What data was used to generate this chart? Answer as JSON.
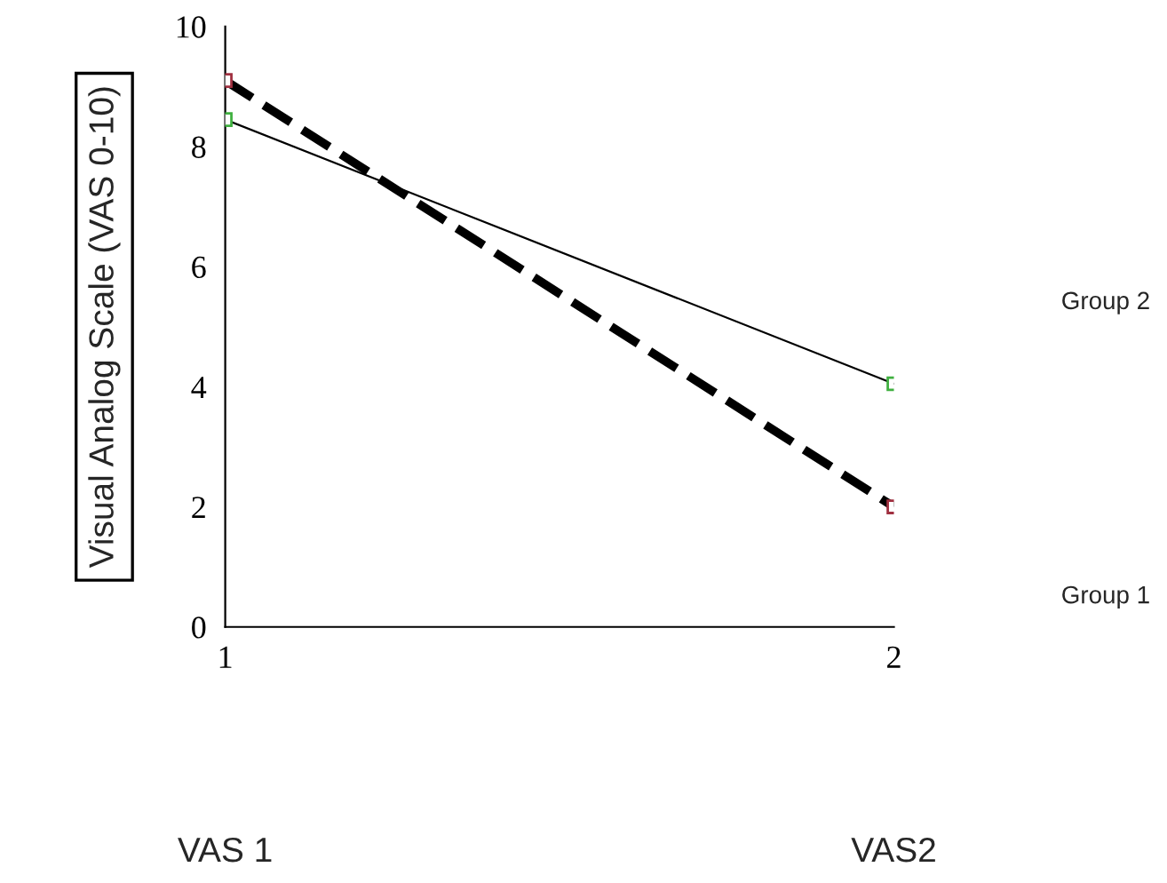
{
  "chart_data": {
    "type": "line",
    "ylabel": "Visual Analog Scale (VAS 0-10)",
    "x": [
      1,
      2
    ],
    "xlim": [
      1,
      2
    ],
    "xticks": [
      1,
      2
    ],
    "ylim": [
      0,
      10
    ],
    "yticks": [
      0,
      2,
      4,
      6,
      8,
      10
    ],
    "grid": false,
    "legend": false,
    "marker": "square",
    "series": [
      {
        "name": "Group 1",
        "color": "#000000",
        "colors": [
          "#a03040",
          "#a03040"
        ],
        "line_style": "dashed",
        "values": [
          9.1,
          2.0
        ]
      },
      {
        "name": "Group 2",
        "color": "#000000",
        "colors": [
          "#40b040",
          "#40b040"
        ],
        "line_style": "solid",
        "values": [
          8.45,
          4.05
        ]
      }
    ],
    "annotations": [
      "VAS 1",
      "VAS2"
    ]
  }
}
